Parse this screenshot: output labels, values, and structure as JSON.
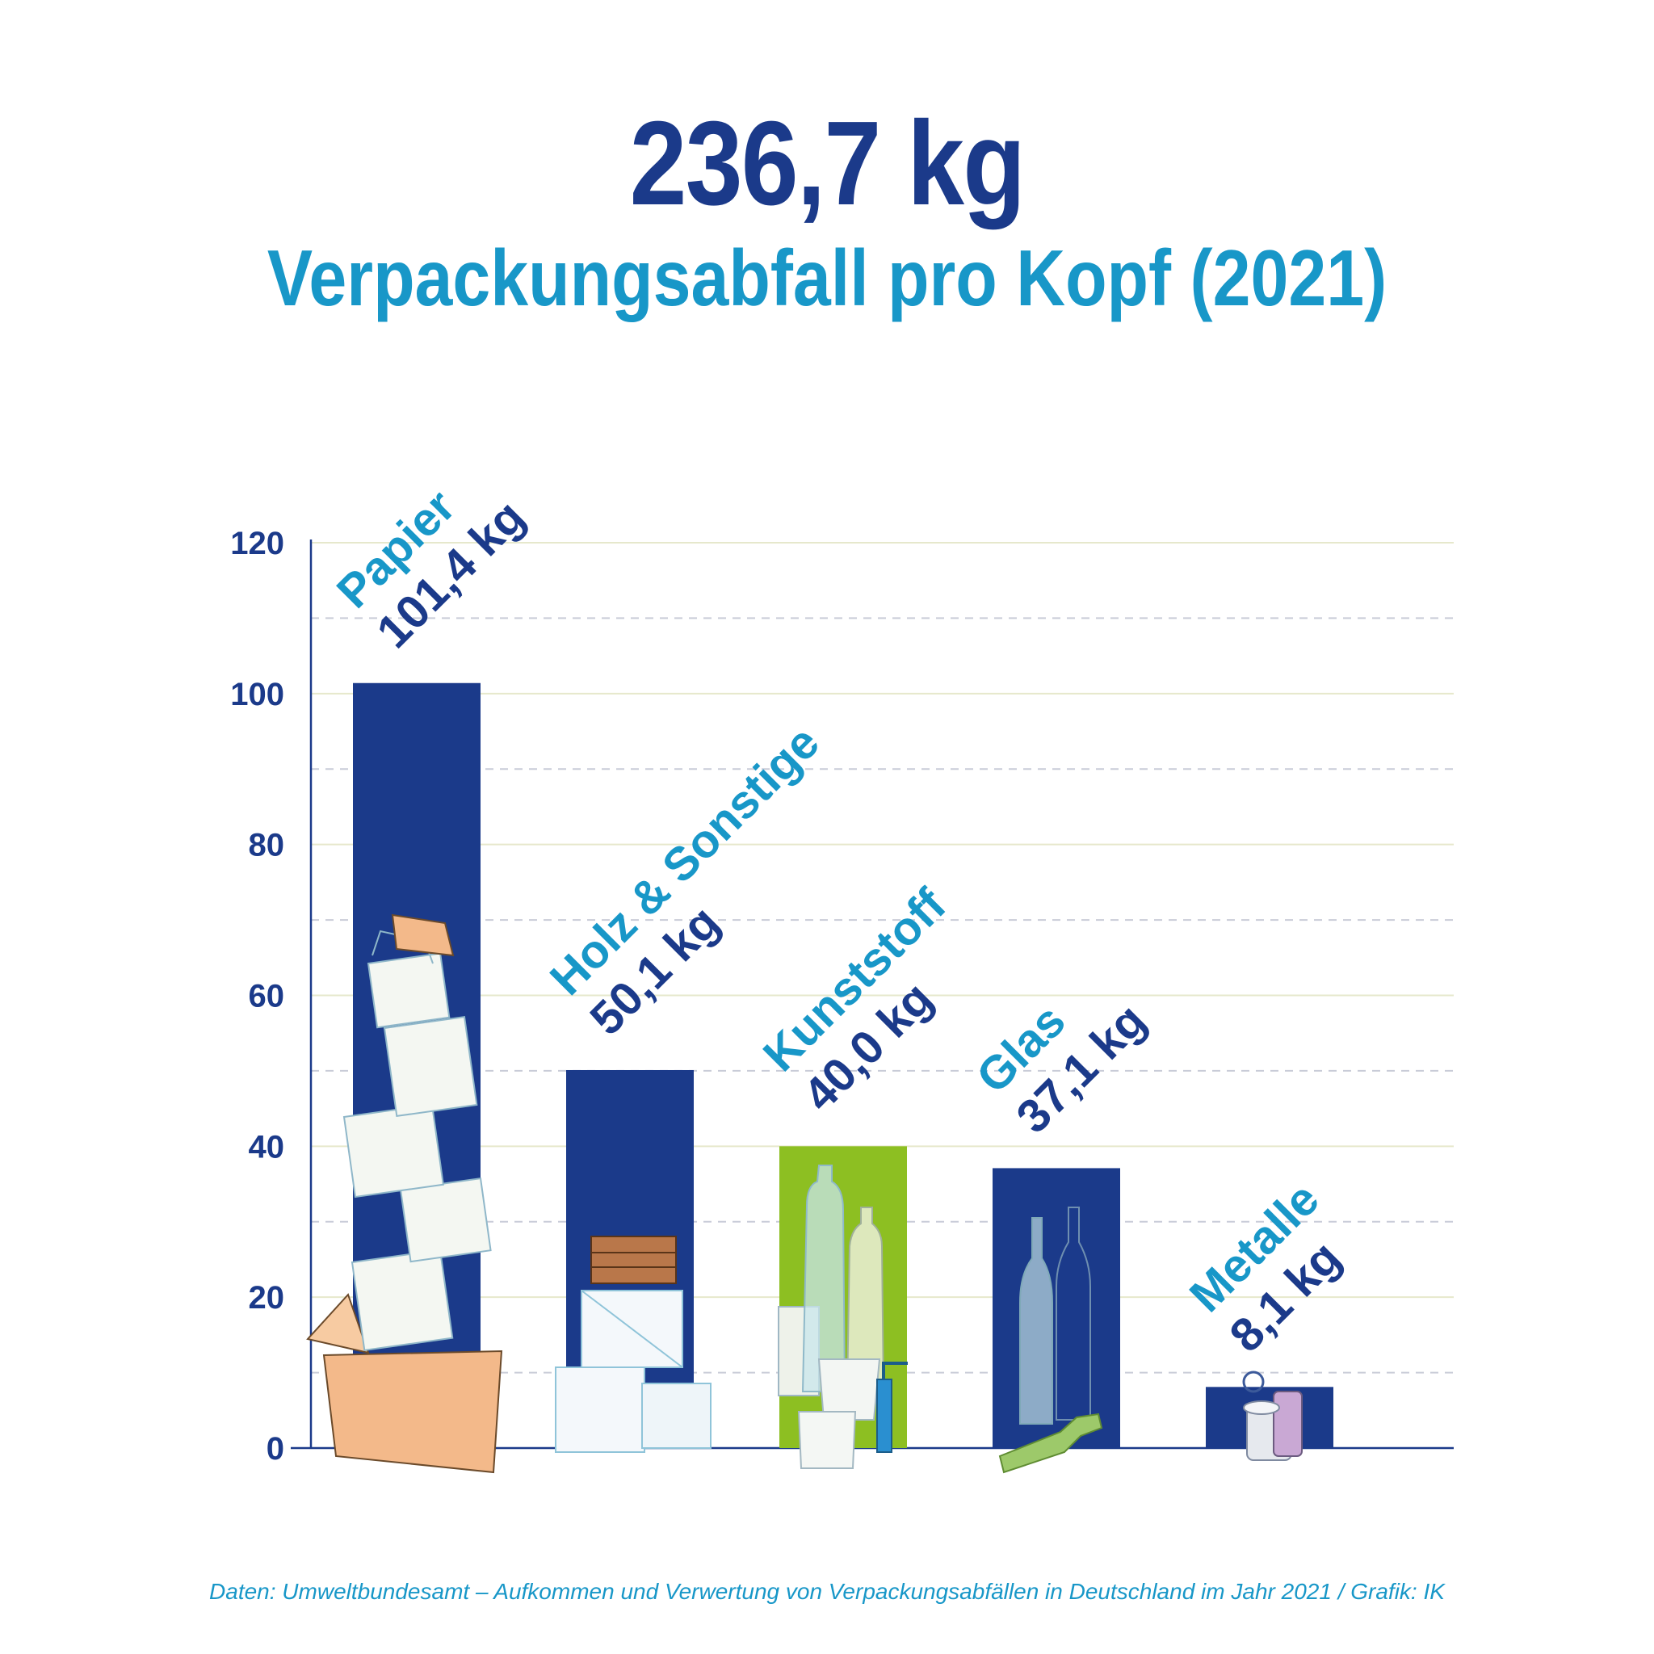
{
  "header": {
    "headline": "236,7 kg",
    "subtitle": "Verpackungsabfall pro Kopf (2021)"
  },
  "footer": {
    "source": "Daten: Umweltbundesamt – Aufkommen und Verwertung von Verpackungsabfällen in Deutschland im Jahr 2021 / Grafik: IK"
  },
  "colors": {
    "navy": "#1b3a8a",
    "cyan": "#1897c8",
    "green": "#8dbf22",
    "grid": "#e3e5c8"
  },
  "chart_data": {
    "type": "bar",
    "title": "Verpackungsabfall pro Kopf (2021)",
    "categories": [
      "Papier",
      "Holz & Sonstige",
      "Kunststoff",
      "Glas",
      "Metalle"
    ],
    "values": [
      101.4,
      50.1,
      40.0,
      37.1,
      8.1
    ],
    "value_labels": [
      "101,4 kg",
      "50,1 kg",
      "40,0 kg",
      "37,1 kg",
      "8,1 kg"
    ],
    "bar_colors": [
      "#1b3a8a",
      "#1b3a8a",
      "#8dbf22",
      "#1b3a8a",
      "#1b3a8a"
    ],
    "icons": [
      "paper-boxes-icon",
      "wooden-crates-icon",
      "plastic-bottles-icon",
      "glass-bottles-icon",
      "metal-cans-icon"
    ],
    "yticks": [
      0,
      20,
      40,
      60,
      80,
      100,
      120
    ],
    "ylim": [
      0,
      120
    ],
    "xlabel": "",
    "ylabel": "",
    "grid": true,
    "legend": "none"
  }
}
